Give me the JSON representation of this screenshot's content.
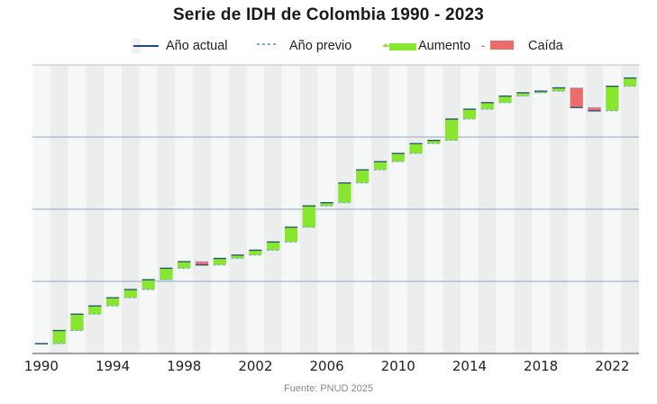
{
  "chart_data": {
    "type": "waterfall",
    "title": "Serie de IDH de Colombia 1990 - 2023",
    "legend": [
      {
        "label": "Año actual",
        "color": "#1f4e79",
        "style": "solid"
      },
      {
        "label": "Año previo",
        "color": "#7ea6d8",
        "style": "dashed"
      },
      {
        "label": "Aumento",
        "color": "#88e62e",
        "style": "bar"
      },
      {
        "label": "Caída",
        "color": "#ec6b6b",
        "style": "bar"
      }
    ],
    "x": [
      1990,
      1991,
      1992,
      1993,
      1994,
      1995,
      1996,
      1997,
      1998,
      1999,
      2000,
      2001,
      2002,
      2003,
      2004,
      2005,
      2006,
      2007,
      2008,
      2009,
      2010,
      2011,
      2012,
      2013,
      2014,
      2015,
      2016,
      2017,
      2018,
      2019,
      2020,
      2021,
      2022,
      2023
    ],
    "values": [
      0.606,
      0.614,
      0.624,
      0.629,
      0.634,
      0.639,
      0.645,
      0.652,
      0.656,
      0.654,
      0.658,
      0.66,
      0.663,
      0.668,
      0.677,
      0.69,
      0.692,
      0.704,
      0.712,
      0.717,
      0.722,
      0.728,
      0.73,
      0.743,
      0.749,
      0.753,
      0.757,
      0.759,
      0.76,
      0.762,
      0.75,
      0.748,
      0.763,
      0.768
    ],
    "increase_color": "#88e62e",
    "decrease_color": "#ec6b6b",
    "xticks": [
      "1990",
      "1994",
      "1998",
      "2002",
      "2006",
      "2010",
      "2014",
      "2018",
      "2022"
    ],
    "ylim": [
      0.6,
      0.776
    ],
    "grid": true
  },
  "source": "Fuente: PNUD 2025"
}
